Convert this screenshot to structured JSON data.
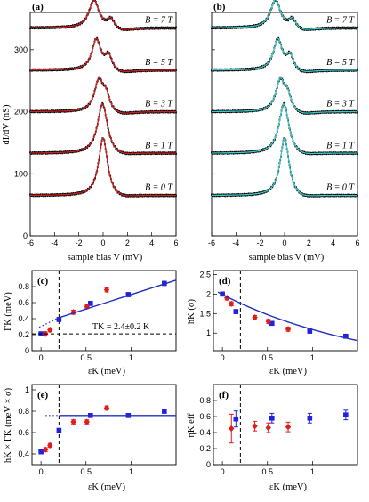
{
  "colors": {
    "data": "#000000",
    "fit_a": "#cc1f1f",
    "fit_b": "#3ac8c8",
    "series1": "#2222dd",
    "series2": "#e01b1b",
    "fitline": "#2030c0"
  },
  "chart_data": [
    {
      "panel": "(a)",
      "type": "line",
      "xlabel": "sample bias V (mV)",
      "ylabel": "dI/dV (nS)",
      "xlim": [
        -6,
        6
      ],
      "ylim": [
        0,
        360
      ],
      "xticks": [
        "-6",
        "-4",
        "-2",
        "0",
        "2",
        "4",
        "6"
      ],
      "yticks": [
        "0",
        "100",
        "200",
        "300"
      ],
      "curve_labels": [
        "B = 7 T",
        "B = 5 T",
        "B = 3 T",
        "B = 1 T",
        "B = 0 T"
      ],
      "curves": [
        {
          "field_T": 7,
          "base": 335,
          "peaks": [
            {
              "x0": -0.75,
              "amp": 46,
              "w": 0.5
            },
            {
              "x0": 0.65,
              "amp": 16,
              "w": 0.35
            }
          ]
        },
        {
          "field_T": 5,
          "base": 267,
          "peaks": [
            {
              "x0": -0.55,
              "amp": 50,
              "w": 0.45
            },
            {
              "x0": 0.45,
              "amp": 24,
              "w": 0.35
            }
          ]
        },
        {
          "field_T": 3,
          "base": 200,
          "peaks": [
            {
              "x0": -0.35,
              "amp": 50,
              "w": 0.45
            },
            {
              "x0": 0.25,
              "amp": 24,
              "w": 0.35
            }
          ]
        },
        {
          "field_T": 1,
          "base": 133,
          "peaks": [
            {
              "x0": -0.05,
              "amp": 82,
              "w": 0.5
            }
          ]
        },
        {
          "field_T": 0,
          "base": 65,
          "peaks": [
            {
              "x0": 0.0,
              "amp": 95,
              "w": 0.45
            }
          ]
        }
      ]
    },
    {
      "panel": "(b)",
      "type": "line",
      "xlabel": "sample bias V (mV)",
      "xlim": [
        -6,
        6
      ],
      "ylim": [
        0,
        360
      ],
      "xticks": [
        "-6",
        "-4",
        "-2",
        "0",
        "2",
        "4",
        "6"
      ],
      "curve_labels": [
        "B = 7 T",
        "B = 5 T",
        "B = 3 T",
        "B = 1 T",
        "B = 0 T"
      ]
    },
    {
      "panel": "(c)",
      "type": "scatter",
      "xlabel": "εK (meV)",
      "ylabel": "ΓK (meV)",
      "xlim": [
        -0.1,
        1.5
      ],
      "ylim": [
        0,
        1.0
      ],
      "xticks": [
        "0",
        "0.5",
        "1"
      ],
      "yticks": [
        "0",
        "0.2",
        "0.4",
        "0.6",
        "0.8"
      ],
      "annotation": "TK = 2.4±0.2 K",
      "dashed_vline_x": 0.2,
      "hline_y": 0.21,
      "fit": {
        "from": 0.2,
        "to": 1.5,
        "y0": 0.34,
        "slope": 0.36
      },
      "series": [
        {
          "marker": "square",
          "color": "series1",
          "x": [
            0,
            0.2,
            0.55,
            0.97,
            1.37
          ],
          "y": [
            0.21,
            0.39,
            0.59,
            0.7,
            0.84
          ]
        },
        {
          "marker": "diamond",
          "color": "series2",
          "x": [
            0.05,
            0.1,
            0.36,
            0.51,
            0.73
          ],
          "y": [
            0.21,
            0.26,
            0.48,
            0.55,
            0.76
          ]
        }
      ]
    },
    {
      "panel": "(d)",
      "type": "scatter",
      "xlabel": "εK (meV)",
      "ylabel": "hK (σ)",
      "xlim": [
        -0.1,
        1.5
      ],
      "ylim": [
        0.55,
        2.6
      ],
      "xticks": [
        "0",
        "0.5",
        "1"
      ],
      "yticks": [
        "1",
        "1.5",
        "2",
        "2.5"
      ],
      "dashed_vline_x": 0.2,
      "fit": {
        "from": -0.05,
        "to": 1.5,
        "a": 2.05,
        "k": 0.6
      },
      "series": [
        {
          "marker": "square",
          "color": "series1",
          "x": [
            0,
            0.15,
            0.55,
            0.97,
            1.37
          ],
          "y": [
            2.0,
            1.55,
            1.25,
            1.05,
            0.92
          ]
        },
        {
          "marker": "diamond",
          "color": "series2",
          "x": [
            0.05,
            0.1,
            0.36,
            0.51,
            0.73
          ],
          "y": [
            1.9,
            1.75,
            1.4,
            1.3,
            1.1
          ]
        }
      ]
    },
    {
      "panel": "(e)",
      "type": "scatter",
      "xlabel": "εK (meV)",
      "ylabel": "hK × ΓK (meV × σ)",
      "xlim": [
        -0.1,
        1.5
      ],
      "ylim": [
        0.3,
        1.05
      ],
      "xticks": [
        "0",
        "0.5",
        "1"
      ],
      "yticks": [
        "0.4",
        "0.6",
        "0.8",
        "1"
      ],
      "dashed_vline_x": 0.2,
      "hline_y": 0.76,
      "series": [
        {
          "marker": "square",
          "color": "series1",
          "x": [
            0,
            0.2,
            0.55,
            0.97,
            1.37
          ],
          "y": [
            0.42,
            0.62,
            0.76,
            0.76,
            0.8
          ]
        },
        {
          "marker": "diamond",
          "color": "series2",
          "x": [
            0.05,
            0.1,
            0.36,
            0.51,
            0.73
          ],
          "y": [
            0.44,
            0.48,
            0.7,
            0.7,
            0.83
          ]
        }
      ]
    },
    {
      "panel": "(f)",
      "type": "scatter",
      "xlabel": "εK (meV)",
      "ylabel": "ηK eff",
      "xlim": [
        -0.1,
        1.5
      ],
      "ylim": [
        0,
        1.0
      ],
      "xticks": [
        "0",
        "0.5",
        "1"
      ],
      "yticks": [
        "0",
        "0.2",
        "0.4",
        "0.6",
        "0.8"
      ],
      "dashed_vline_x": 0.2,
      "series": [
        {
          "marker": "square",
          "color": "series1",
          "x": [
            0.15,
            0.55,
            0.97,
            1.37
          ],
          "y": [
            0.57,
            0.58,
            0.58,
            0.62
          ],
          "err": [
            0.1,
            0.06,
            0.06,
            0.06
          ]
        },
        {
          "marker": "diamond",
          "color": "series2",
          "x": [
            0.1,
            0.36,
            0.51,
            0.73
          ],
          "y": [
            0.45,
            0.48,
            0.46,
            0.47
          ],
          "err": [
            0.18,
            0.06,
            0.06,
            0.06
          ]
        }
      ]
    }
  ]
}
